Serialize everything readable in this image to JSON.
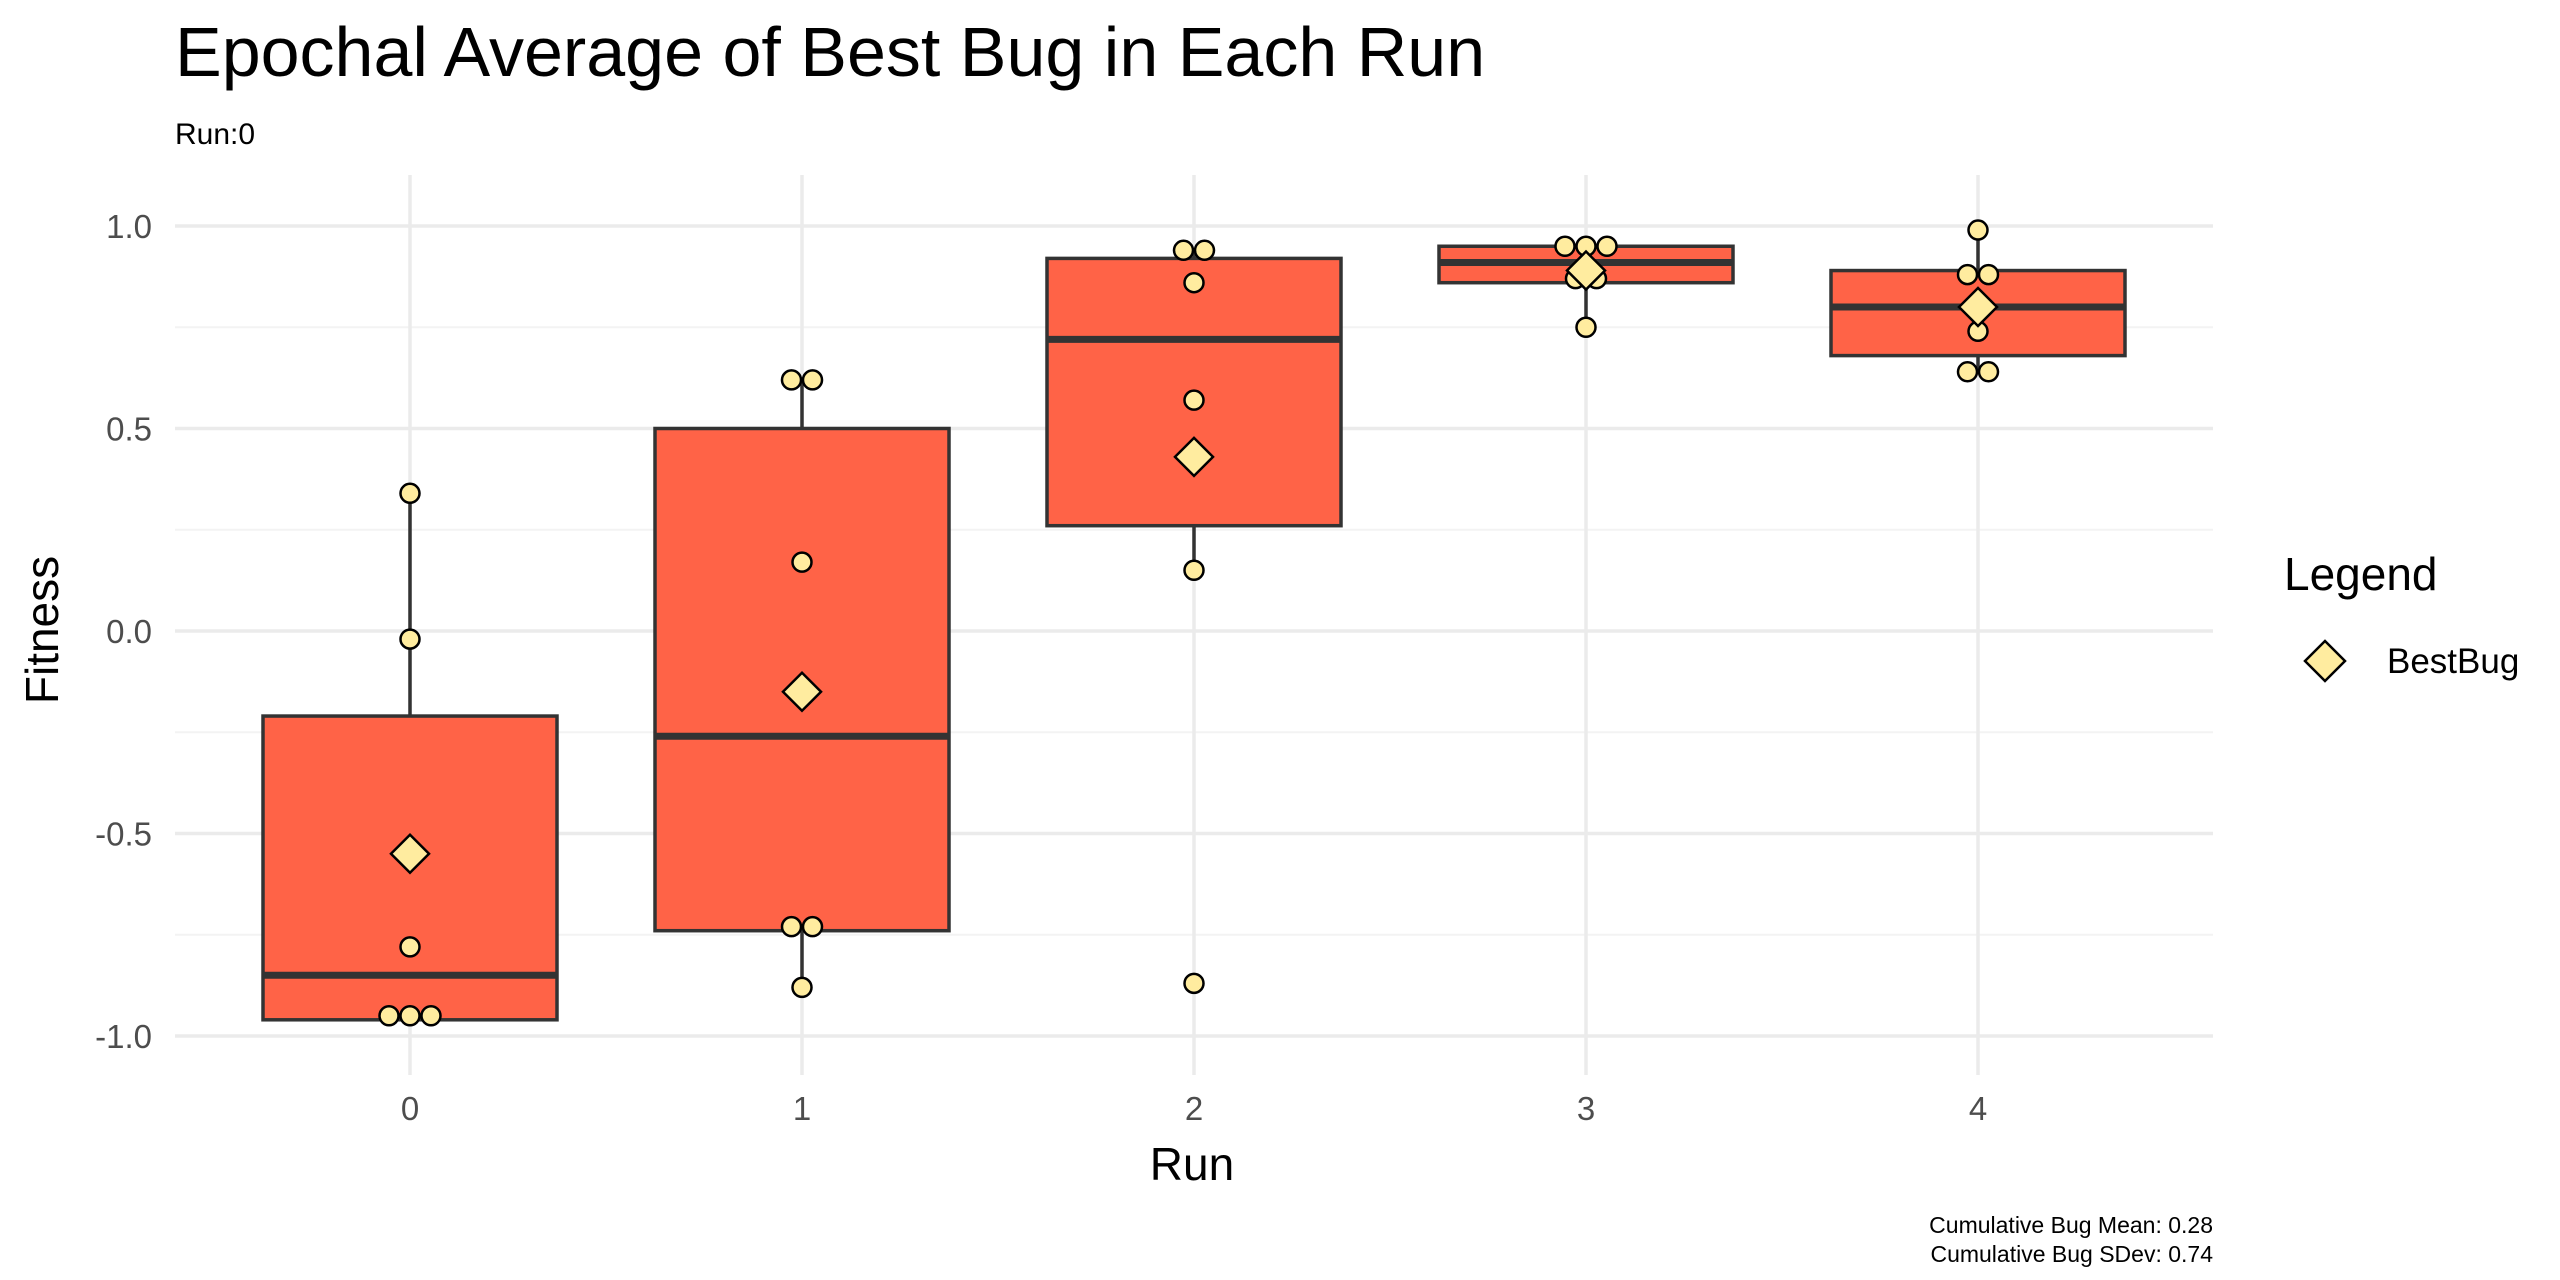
{
  "chart_data": {
    "type": "box",
    "title": "Epochal Average of Best Bug in Each Run",
    "subtitle": "Run:0",
    "xlabel": "Run",
    "ylabel": "Fitness",
    "categories": [
      "0",
      "1",
      "2",
      "3",
      "4"
    ],
    "y_ticks": [
      1.0,
      0.5,
      0.0,
      -0.5,
      -1.0
    ],
    "y_tick_labels": [
      "1.0",
      "0.5",
      "0.0",
      "-0.5",
      "-1.0"
    ],
    "ylim": [
      -1.09,
      1.12
    ],
    "grid": true,
    "legend": {
      "title": "Legend",
      "placement": "right",
      "entries": [
        {
          "label": "BestBug",
          "marker": "diamond"
        }
      ]
    },
    "boxes": [
      {
        "run": "0",
        "q1": -0.96,
        "median": -0.85,
        "q3": -0.21,
        "whisker_low": -0.96,
        "whisker_high": 0.34,
        "mean": -0.55,
        "points": [
          -0.95,
          -0.95,
          -0.95,
          -0.78,
          -0.02,
          0.34
        ]
      },
      {
        "run": "1",
        "q1": -0.74,
        "median": -0.26,
        "q3": 0.5,
        "whisker_low": -0.88,
        "whisker_high": 0.62,
        "mean": -0.15,
        "points": [
          -0.88,
          -0.73,
          -0.73,
          0.17,
          0.62,
          0.62
        ]
      },
      {
        "run": "2",
        "q1": 0.26,
        "median": 0.72,
        "q3": 0.92,
        "whisker_low": 0.15,
        "whisker_high": 0.94,
        "mean": 0.43,
        "points": [
          -0.87,
          0.15,
          0.57,
          0.86,
          0.94,
          0.94
        ]
      },
      {
        "run": "3",
        "q1": 0.86,
        "median": 0.91,
        "q3": 0.95,
        "whisker_low": 0.75,
        "whisker_high": 0.95,
        "mean": 0.89,
        "points": [
          0.75,
          0.87,
          0.87,
          0.95,
          0.95,
          0.95
        ]
      },
      {
        "run": "4",
        "q1": 0.68,
        "median": 0.8,
        "q3": 0.89,
        "whisker_low": 0.64,
        "whisker_high": 0.99,
        "mean": 0.8,
        "points": [
          0.64,
          0.64,
          0.74,
          0.88,
          0.88,
          0.99
        ]
      }
    ],
    "caption": [
      "Cumulative Bug Mean: 0.28",
      "Cumulative Bug SDev: 0.74"
    ]
  },
  "colors": {
    "box_fill": "#ff6347",
    "box_stroke": "#333333",
    "point_fill": "#ffec9f",
    "grid_major": "#ebebeb",
    "grid_minor": "#f3f3f3"
  }
}
